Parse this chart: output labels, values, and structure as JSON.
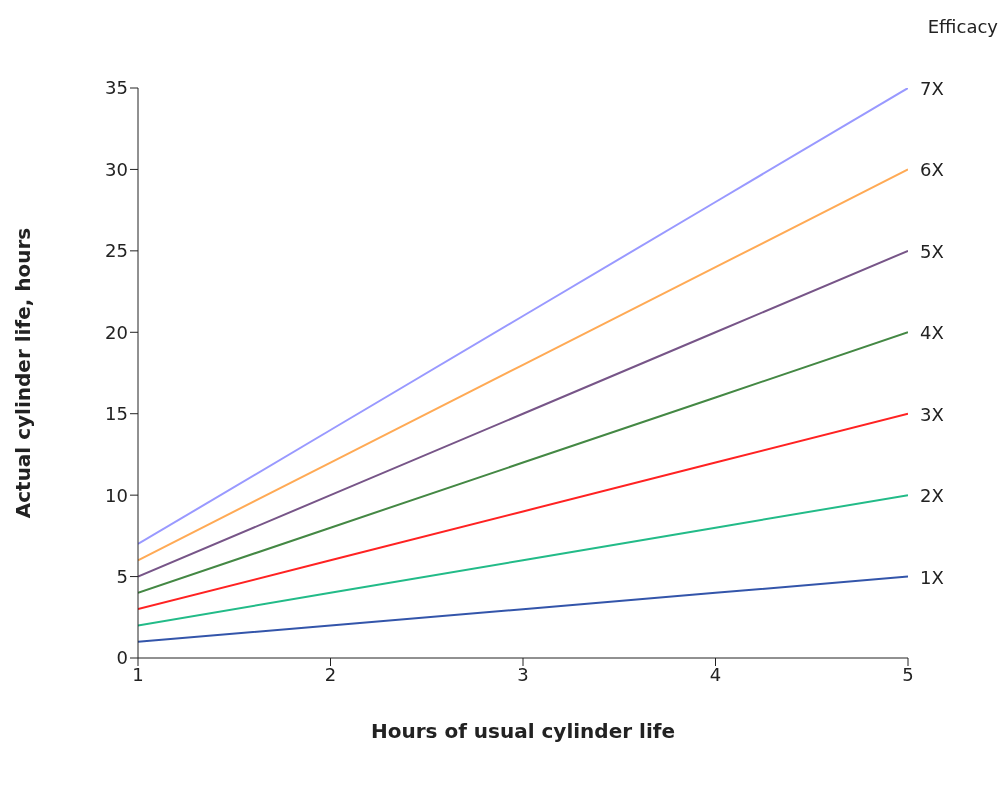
{
  "chart_data": {
    "type": "line",
    "xlabel": "Hours of usual cylinder life",
    "ylabel": "Actual cylinder life, hours",
    "legend_title": "Efficacy",
    "x": [
      1,
      2,
      3,
      4,
      5
    ],
    "xlim": [
      1,
      5
    ],
    "xticks": [
      1,
      2,
      3,
      4,
      5
    ],
    "ylim": [
      0,
      35
    ],
    "yticks": [
      0,
      5,
      10,
      15,
      20,
      25,
      30,
      35
    ],
    "series": [
      {
        "name": "1X",
        "color": "#3355aa",
        "values": [
          1,
          2,
          3,
          4,
          5
        ]
      },
      {
        "name": "2X",
        "color": "#22bb88",
        "values": [
          2,
          4,
          6,
          8,
          10
        ]
      },
      {
        "name": "3X",
        "color": "#ff2222",
        "values": [
          3,
          6,
          9,
          12,
          15
        ]
      },
      {
        "name": "4X",
        "color": "#448844",
        "values": [
          4,
          8,
          12,
          16,
          20
        ]
      },
      {
        "name": "5X",
        "color": "#775588",
        "values": [
          5,
          10,
          15,
          20,
          25
        ]
      },
      {
        "name": "6X",
        "color": "#ffaa55",
        "values": [
          6,
          12,
          18,
          24,
          30
        ]
      },
      {
        "name": "7X",
        "color": "#9999ff",
        "values": [
          7,
          14,
          21,
          28,
          35
        ]
      }
    ]
  }
}
